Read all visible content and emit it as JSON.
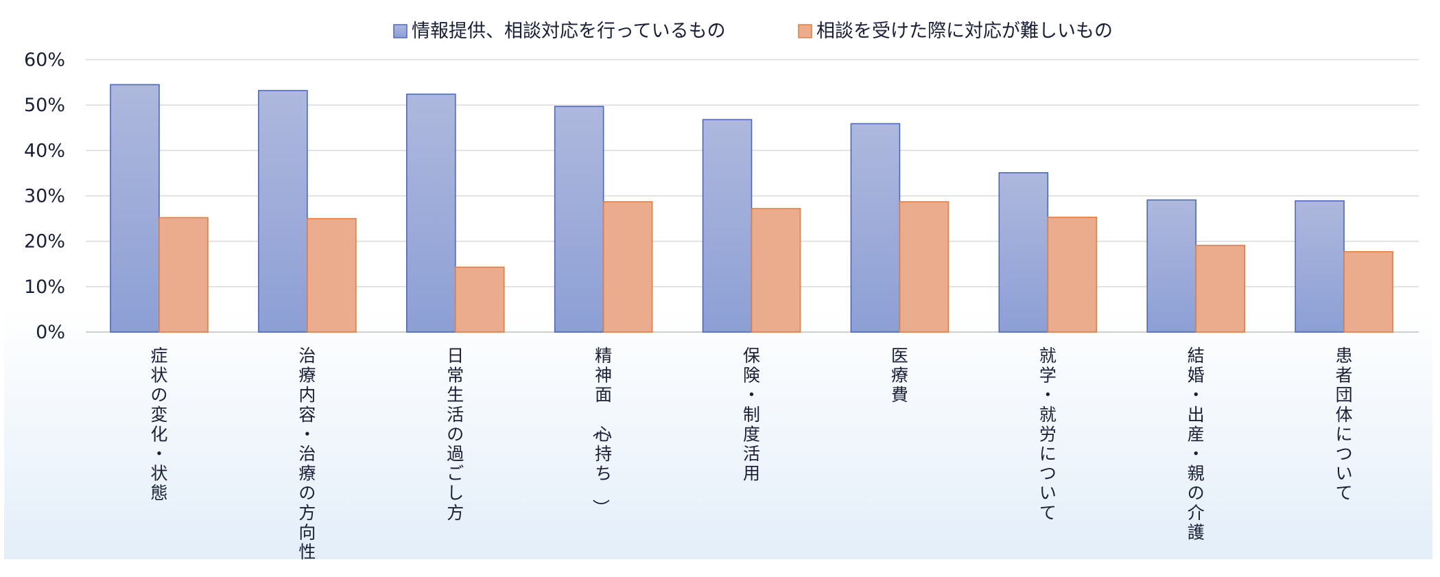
{
  "chart_data": {
    "type": "bar",
    "ylim": [
      0,
      0.6
    ],
    "yticks": [
      0,
      0.1,
      0.2,
      0.3,
      0.4,
      0.5,
      0.6
    ],
    "ytick_labels": [
      "0%",
      "10%",
      "20%",
      "30%",
      "40%",
      "50%",
      "60%"
    ],
    "grid": true,
    "legend_position": "top-center",
    "categories": [
      "症状の変化・状態",
      "治療内容・治療の方向性",
      "日常生活の過ごし方",
      "精神面（心持ち）",
      "保険・制度活用",
      "医療費",
      "就学・就労について",
      "結婚・出産・親の介護",
      "患者団体について"
    ],
    "series": [
      {
        "name": "情報提供、相談対応を行っているもの",
        "color": "#8C9FD5",
        "color_top": "#AEB8DD",
        "edge": "#4A66C2",
        "values": [
          0.545,
          0.532,
          0.524,
          0.497,
          0.468,
          0.459,
          0.351,
          0.291,
          0.289
        ]
      },
      {
        "name": "相談を受けた際に対応が難しいもの",
        "color": "#EBAB8D",
        "color_top": "#EBAB8D",
        "edge": "#E37D3E",
        "values": [
          0.252,
          0.25,
          0.143,
          0.287,
          0.272,
          0.287,
          0.253,
          0.191,
          0.177
        ]
      }
    ]
  }
}
